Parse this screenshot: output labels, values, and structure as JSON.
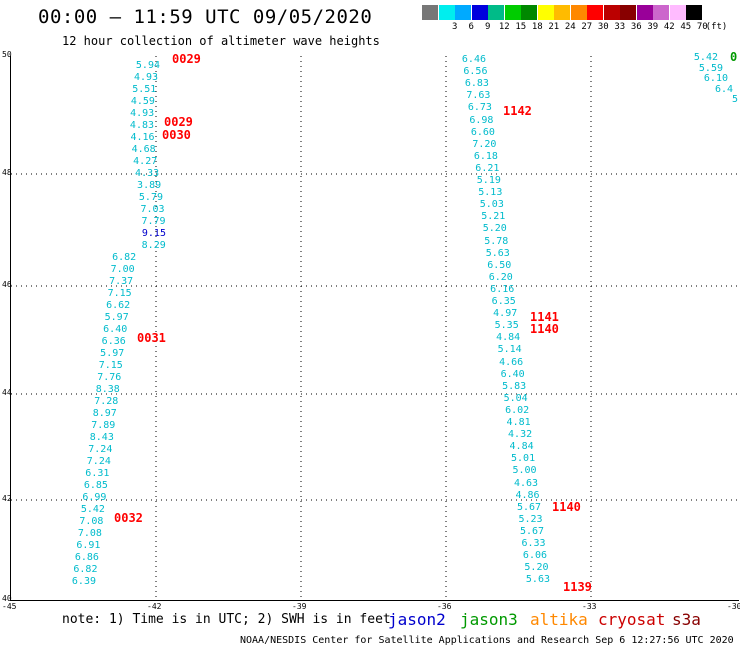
{
  "header": {
    "title": "00:00 – 11:59 UTC 09/05/2020",
    "subtitle": "12 hour collection of altimeter wave heights"
  },
  "colorbar": {
    "colors": [
      "#777777",
      "#00eeee",
      "#00aaff",
      "#0000dd",
      "#00bb88",
      "#00cc00",
      "#008800",
      "#ffff00",
      "#ffbb00",
      "#ff8800",
      "#ff0000",
      "#bb0000",
      "#880000",
      "#990099",
      "#cc66cc",
      "#ffbbff",
      "#000000"
    ],
    "labels": [
      "",
      "3",
      "6",
      "9",
      "12",
      "15",
      "18",
      "21",
      "24",
      "27",
      "30",
      "33",
      "36",
      "39",
      "42",
      "45",
      "70"
    ],
    "unit": "(ft)"
  },
  "map": {
    "lat_labels": [
      "50",
      "48",
      "46",
      "44",
      "42",
      "40"
    ],
    "lon_labels": [
      "-45",
      "-42",
      "-39",
      "-36",
      "-33",
      "-30"
    ],
    "tracks": [
      {
        "color": "#00bbcc",
        "values": [
          "5.94",
          "4.93",
          "5.51",
          "4.59",
          "4.93",
          "4.83",
          "4.16",
          "4.68",
          "4.27",
          "4.33",
          "3.89",
          "5.79",
          "7.03",
          "7.79",
          "9.15",
          "8.29",
          "6.82",
          "7.00",
          "7.37",
          "7.15",
          "6.62",
          "5.97",
          "6.40",
          "6.36",
          "5.97",
          "7.15",
          "7.76",
          "8.38",
          "7.28",
          "8.97",
          "7.89",
          "8.43",
          "7.24",
          "7.24",
          "6.31",
          "6.85",
          "6.99",
          "5.42",
          "7.08",
          "7.08",
          "6.91",
          "6.86",
          "6.82",
          "6.39"
        ]
      },
      {
        "color": "#00bbcc",
        "values": [
          "6.46",
          "6.56",
          "6.83",
          "7.63",
          "6.73",
          "6.98",
          "6.60",
          "7.20",
          "6.18",
          "6.21",
          "5.19",
          "5.13",
          "5.03",
          "5.21",
          "5.20",
          "5.78",
          "5.63",
          "6.50",
          "6.20",
          "6.16",
          "6.35",
          "4.97",
          "5.35",
          "4.84",
          "5.14",
          "4.66",
          "6.40",
          "5.83",
          "5.04",
          "6.02",
          "4.81",
          "4.32",
          "4.84",
          "5.01",
          "5.00",
          "4.63",
          "4.86",
          "5.67",
          "5.23",
          "5.67",
          "6.33",
          "6.06",
          "5.20",
          "5.63"
        ]
      },
      {
        "color": "#00bbcc",
        "values": [
          "5.42",
          "5.59",
          "6.10",
          "6.4",
          "5"
        ]
      }
    ],
    "pass_labels": [
      "0029",
      "0029",
      "0030",
      "0031",
      "0032",
      "1142",
      "1141",
      "1140",
      "1140",
      "1139",
      "0"
    ]
  },
  "footer": {
    "note": "note: 1) Time is in UTC; 2) SWH is in feet",
    "satellites": [
      {
        "name": "jason2",
        "color": "#0000cc"
      },
      {
        "name": "jason3",
        "color": "#009900"
      },
      {
        "name": "altika",
        "color": "#ff8800"
      },
      {
        "name": "cryosat",
        "color": "#cc0000"
      },
      {
        "name": "s3a",
        "color": "#880000"
      }
    ],
    "credit": "NOAA/NESDIS Center for Satellite Applications and Research   Sep  6 12:27:56 UTC 2020"
  }
}
